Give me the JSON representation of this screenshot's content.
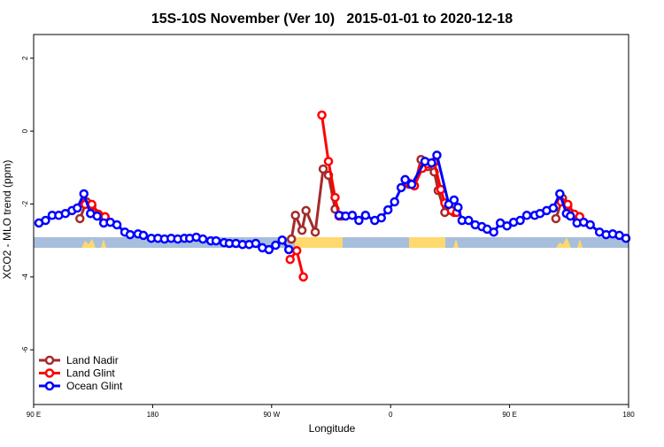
{
  "chart_data": {
    "type": "line",
    "title": "15S-10S November (Ver 10)   2015-01-01 to 2020-12-18",
    "x_label": "Longitude",
    "y_label": "XCO2 - MLO trend (ppm)",
    "xlim": [
      90,
      540
    ],
    "ylim": [
      -7.5,
      2.65
    ],
    "xticks": [
      {
        "value": 90,
        "label": "90 E"
      },
      {
        "value": 180,
        "label": "180"
      },
      {
        "value": 270,
        "label": "90 W"
      },
      {
        "value": 360,
        "label": "0"
      },
      {
        "value": 450,
        "label": "90 E"
      },
      {
        "value": 540,
        "label": "180"
      }
    ],
    "yticks": [
      -6,
      -4,
      -2,
      0,
      2
    ],
    "legend": "bottom-left",
    "series": [
      {
        "name": "Land Nadir",
        "color": "#a52a2a",
        "x": [
          125,
          130,
          134,
          144,
          285,
          288,
          293,
          296,
          303,
          309,
          313,
          318,
          323,
          374,
          378,
          383,
          388,
          393,
          396,
          401,
          404,
          408,
          485,
          490,
          494,
          503
        ],
        "values": [
          -2.4,
          -1.94,
          -2.06,
          -2.35,
          -2.96,
          -2.31,
          -2.72,
          -2.18,
          -2.77,
          -1.04,
          -1.21,
          -2.14,
          -2.33,
          -1.46,
          -1.5,
          -0.78,
          -0.97,
          -1.12,
          -1.63,
          -2.23,
          -2.04,
          -2.23,
          -2.4,
          -1.84,
          -2.06,
          -2.35
        ]
      },
      {
        "name": "Land Glint",
        "color": "#ff0000",
        "x": [
          129,
          134,
          139,
          144,
          284,
          289,
          294,
          308,
          313,
          318,
          321,
          374,
          378,
          384,
          388,
          393,
          398,
          401,
          406,
          410,
          489,
          494,
          499,
          503
        ],
        "values": [
          -2.01,
          -2.01,
          -2.28,
          -2.35,
          -3.52,
          -3.28,
          -4.0,
          0.44,
          -0.83,
          -1.82,
          -2.33,
          -1.43,
          -1.5,
          -1.02,
          -0.9,
          -0.85,
          -1.6,
          -1.97,
          -2.18,
          -2.23,
          -1.94,
          -2.01,
          -2.28,
          -2.35
        ]
      },
      {
        "name": "Ocean Glint",
        "color": "#0000ff",
        "x": [
          94,
          99,
          104,
          109,
          114,
          119,
          123,
          128,
          133,
          138,
          143,
          148,
          153,
          159,
          163,
          169,
          173,
          179,
          184,
          189,
          194,
          199,
          204,
          208,
          213,
          218,
          224,
          228,
          234,
          238,
          243,
          248,
          253,
          258,
          263,
          268,
          273,
          278,
          283,
          321,
          326,
          331,
          336,
          341,
          348,
          353,
          358,
          363,
          368,
          371,
          376,
          386,
          391,
          395,
          404,
          408,
          411,
          414,
          419,
          424,
          429,
          433,
          438,
          443,
          448,
          453,
          458,
          463,
          469,
          473,
          478,
          483,
          488,
          493,
          496,
          501,
          506,
          511,
          518,
          523,
          528,
          533,
          538
        ],
        "values": [
          -2.52,
          -2.45,
          -2.31,
          -2.31,
          -2.26,
          -2.18,
          -2.11,
          -1.72,
          -2.26,
          -2.33,
          -2.52,
          -2.5,
          -2.57,
          -2.77,
          -2.84,
          -2.82,
          -2.86,
          -2.94,
          -2.94,
          -2.96,
          -2.94,
          -2.96,
          -2.94,
          -2.94,
          -2.91,
          -2.96,
          -3.01,
          -3.01,
          -3.06,
          -3.08,
          -3.08,
          -3.11,
          -3.11,
          -3.08,
          -3.2,
          -3.25,
          -3.13,
          -2.99,
          -3.25,
          -2.31,
          -2.33,
          -2.31,
          -2.45,
          -2.31,
          -2.45,
          -2.38,
          -2.16,
          -1.94,
          -1.55,
          -1.33,
          -1.46,
          -0.83,
          -0.87,
          -0.66,
          -2.01,
          -1.89,
          -2.09,
          -2.45,
          -2.45,
          -2.57,
          -2.62,
          -2.69,
          -2.77,
          -2.52,
          -2.6,
          -2.5,
          -2.45,
          -2.31,
          -2.31,
          -2.26,
          -2.18,
          -2.11,
          -1.72,
          -2.26,
          -2.33,
          -2.52,
          -2.5,
          -2.57,
          -2.77,
          -2.84,
          -2.82,
          -2.86,
          -2.94
        ]
      }
    ]
  }
}
